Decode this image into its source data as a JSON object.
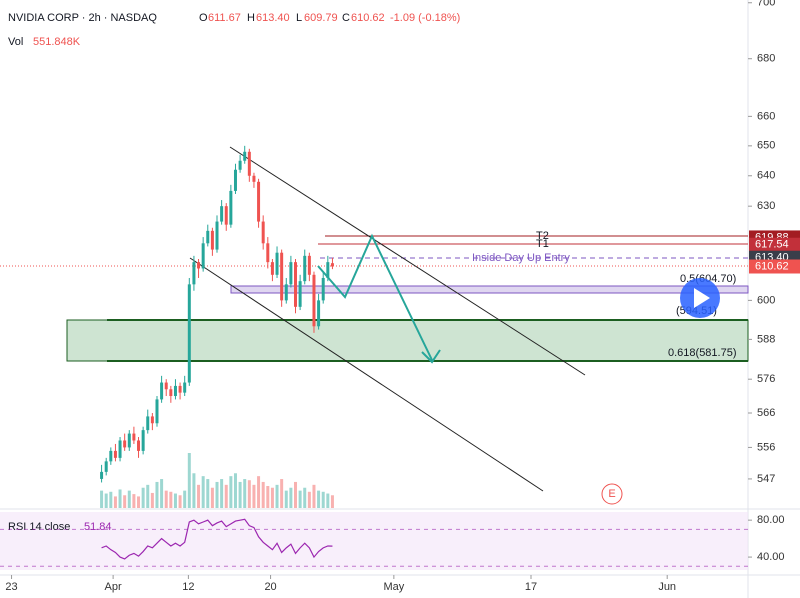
{
  "header": {
    "symbol": "NVIDIA CORP · 2h · NASDAQ",
    "open_label": "O",
    "open": "611.67",
    "high_label": "H",
    "high": "613.40",
    "low_label": "L",
    "low": "609.79",
    "close_label": "C",
    "close": "610.62",
    "change": "-1.09 (-0.18%)",
    "vol_label": "Vol",
    "vol": "551.848K"
  },
  "chart_data": {
    "type": "candlestick",
    "log_scale": true,
    "grid": false,
    "up_color": "#26a69a",
    "down_color": "#ef5350",
    "x": [
      21,
      22,
      23,
      24,
      25,
      26,
      27,
      28,
      29,
      30,
      31,
      32,
      33,
      34,
      35,
      36,
      37,
      38,
      39,
      40,
      41,
      42,
      43,
      44,
      45,
      46,
      47,
      48,
      49,
      50,
      51,
      52,
      53,
      54,
      55,
      56,
      57,
      58,
      59,
      60,
      61,
      62,
      63,
      64,
      65,
      66,
      67,
      68,
      69,
      70,
      71
    ],
    "candles": [
      [
        547,
        551,
        546,
        549
      ],
      [
        549,
        553,
        548,
        552
      ],
      [
        552,
        556,
        551,
        555
      ],
      [
        555,
        557,
        552,
        553
      ],
      [
        553,
        559,
        552,
        558
      ],
      [
        558,
        560,
        555,
        556
      ],
      [
        556,
        561,
        555,
        560
      ],
      [
        560,
        562,
        557,
        558
      ],
      [
        558,
        559,
        553,
        555
      ],
      [
        555,
        562,
        554,
        561
      ],
      [
        561,
        567,
        560,
        565
      ],
      [
        565,
        566,
        561,
        563
      ],
      [
        563,
        571,
        562,
        570
      ],
      [
        570,
        577,
        569,
        575
      ],
      [
        575,
        576,
        571,
        573
      ],
      [
        573,
        574,
        569,
        571
      ],
      [
        571,
        576,
        570,
        574
      ],
      [
        574,
        575,
        570,
        572
      ],
      [
        572,
        577,
        571,
        575
      ],
      [
        575,
        607,
        574,
        605
      ],
      [
        605,
        614,
        603,
        612
      ],
      [
        612,
        613,
        607,
        610
      ],
      [
        610,
        620,
        609,
        618
      ],
      [
        618,
        624,
        617,
        622
      ],
      [
        622,
        623,
        614,
        616
      ],
      [
        616,
        627,
        615,
        625
      ],
      [
        625,
        632,
        624,
        630
      ],
      [
        630,
        631,
        622,
        624
      ],
      [
        624,
        637,
        623,
        635
      ],
      [
        635,
        644,
        634,
        642
      ],
      [
        642,
        647,
        641,
        645
      ],
      [
        645,
        650,
        644,
        648
      ],
      [
        648,
        649,
        638,
        640
      ],
      [
        640,
        641,
        636,
        638
      ],
      [
        638,
        639,
        623,
        625
      ],
      [
        625,
        627,
        616,
        618
      ],
      [
        618,
        620,
        610,
        612
      ],
      [
        612,
        613,
        606,
        608
      ],
      [
        608,
        617,
        607,
        615
      ],
      [
        615,
        616,
        598,
        600
      ],
      [
        600,
        607,
        599,
        605
      ],
      [
        605,
        614,
        604,
        612
      ],
      [
        612,
        613,
        596,
        598
      ],
      [
        598,
        608,
        597,
        606
      ],
      [
        606,
        616,
        605,
        614
      ],
      [
        614,
        615,
        606,
        608
      ],
      [
        608,
        609,
        590,
        592
      ],
      [
        592,
        602,
        591,
        600
      ],
      [
        600,
        609,
        599,
        607
      ],
      [
        607,
        614,
        606,
        612
      ],
      [
        611.67,
        613.4,
        609.79,
        610.62
      ]
    ],
    "volume": [
      30,
      25,
      28,
      20,
      32,
      22,
      30,
      24,
      20,
      35,
      40,
      26,
      45,
      50,
      30,
      28,
      25,
      22,
      30,
      95,
      60,
      40,
      55,
      50,
      35,
      45,
      50,
      40,
      55,
      60,
      45,
      50,
      48,
      40,
      55,
      45,
      38,
      35,
      40,
      50,
      30,
      35,
      45,
      30,
      35,
      28,
      40,
      30,
      28,
      25,
      22
    ],
    "ylim": [
      545,
      701
    ],
    "yticks": [
      700,
      680,
      660,
      650,
      640,
      630,
      600,
      588,
      576,
      566,
      556,
      547
    ],
    "xlim": [
      -1,
      161
    ],
    "xticks": [
      {
        "value": 1.5,
        "label": "23"
      },
      {
        "value": 23.5,
        "label": "Apr"
      },
      {
        "value": 39.8,
        "label": "12"
      },
      {
        "value": 57.6,
        "label": "20"
      },
      {
        "value": 84.3,
        "label": "May"
      },
      {
        "value": 114,
        "label": "17"
      },
      {
        "value": 143.5,
        "label": "Jun"
      }
    ],
    "price_tags": [
      {
        "value": 619.88,
        "label": "619.88",
        "color": "#a31c22"
      },
      {
        "value": 617.54,
        "label": "617.54",
        "color": "#c2303a"
      },
      {
        "value": 613.4,
        "label": "613.40",
        "color": "#3a3e4a"
      },
      {
        "value": 610.62,
        "label": "610.62",
        "color": "#ef5350"
      }
    ],
    "rsi": {
      "label": "RSI 14 close",
      "last": "51.84",
      "color": "#9c27b0",
      "ylim": [
        26,
        91
      ],
      "yticks": [
        {
          "value": 80,
          "label": "80.00"
        },
        {
          "value": 40,
          "label": "40.00"
        }
      ],
      "band": [
        30,
        70
      ],
      "values": [
        50,
        52,
        48,
        45,
        40,
        38,
        42,
        44,
        41,
        46,
        52,
        50,
        55,
        60,
        56,
        52,
        55,
        52,
        56,
        78,
        80,
        76,
        78,
        80,
        74,
        77,
        79,
        73,
        76,
        79,
        80,
        81,
        74,
        72,
        62,
        56,
        52,
        48,
        55,
        45,
        50,
        54,
        44,
        50,
        55,
        50,
        40,
        46,
        50,
        52,
        51.84
      ]
    }
  },
  "annotations": {
    "t2": "T2",
    "t1": "T1",
    "entry": "Inside Day Up Entry",
    "fib_05": "0.5(604.70)",
    "fib_mid": "(594.51)",
    "fib_618": "0.618(581.75)",
    "event": "E"
  }
}
